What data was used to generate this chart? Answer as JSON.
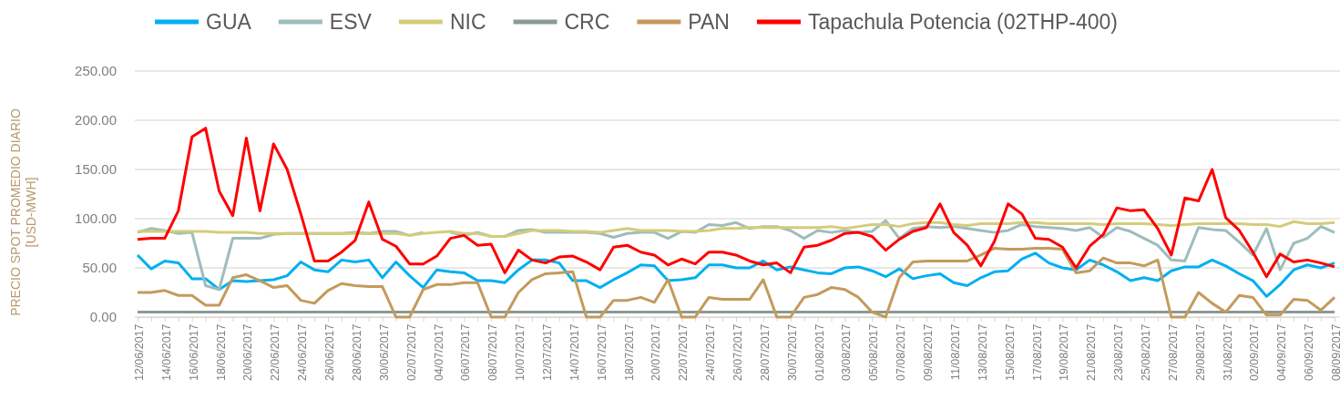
{
  "chart_data": {
    "type": "line",
    "ylabel": "PRECIO SPOT PROMEDIO DIARIO [USD-MWH]",
    "categories": [
      "12/06/2017",
      null,
      "14/06/2017",
      null,
      "16/06/2017",
      null,
      "18/06/2017",
      null,
      "20/06/2017",
      null,
      "22/06/2017",
      null,
      "24/06/2017",
      null,
      "26/06/2017",
      null,
      "28/06/2017",
      null,
      "30/06/2017",
      null,
      "02/07/2017",
      null,
      "04/07/2017",
      null,
      "06/07/2017",
      null,
      "08/07/2017",
      null,
      "10/07/2017",
      null,
      "12/07/2017",
      null,
      "14/07/2017",
      null,
      "16/07/2017",
      null,
      "18/07/2017",
      null,
      "20/07/2017",
      null,
      "22/07/2017",
      null,
      "24/07/2017",
      null,
      "26/07/2017",
      null,
      "28/07/2017",
      null,
      "30/07/2017",
      null,
      "01/08/2017",
      null,
      "03/08/2017",
      null,
      "05/08/2017",
      null,
      "07/08/2017",
      null,
      "09/08/2017",
      null,
      "11/08/2017",
      null,
      "13/08/2017",
      null,
      "15/08/2017",
      null,
      "17/08/2017",
      null,
      "19/08/2017",
      null,
      "21/08/2017",
      null,
      "23/08/2017",
      null,
      "25/08/2017",
      null,
      "27/08/2017",
      null,
      "29/08/2017",
      null,
      "31/08/2017",
      null,
      "02/09/2017",
      null,
      "04/09/2017",
      null,
      "06/09/2017",
      null,
      "08/09/2017"
    ],
    "series": [
      {
        "name": "GUA",
        "color": "#00b0f0",
        "values": [
          63,
          49,
          57,
          55,
          39,
          39,
          28,
          37,
          36,
          37,
          38,
          42,
          56,
          48,
          46,
          58,
          56,
          58,
          40,
          56,
          42,
          30,
          48,
          46,
          45,
          37,
          37,
          35,
          48,
          58,
          58,
          55,
          37,
          37,
          30,
          38,
          45,
          53,
          52,
          37,
          38,
          40,
          53,
          53,
          50,
          50,
          57,
          48,
          51,
          48,
          45,
          44,
          50,
          51,
          47,
          41,
          49,
          39,
          42,
          44,
          35,
          32,
          40,
          46,
          47,
          59,
          65,
          55,
          50,
          48,
          58,
          53,
          46,
          37,
          40,
          37,
          47,
          51,
          51,
          58,
          52,
          44,
          37,
          21,
          33,
          48,
          53,
          50,
          55
        ]
      },
      {
        "name": "ESV",
        "color": "#9fbcbc",
        "values": [
          86,
          90,
          88,
          85,
          86,
          32,
          28,
          80,
          80,
          80,
          84,
          85,
          85,
          85,
          85,
          85,
          86,
          85,
          87,
          87,
          83,
          86,
          null,
          86,
          83,
          86,
          82,
          82,
          88,
          89,
          86,
          86,
          86,
          86,
          85,
          81,
          85,
          86,
          86,
          80,
          87,
          86,
          94,
          93,
          96,
          90,
          92,
          92,
          88,
          80,
          88,
          86,
          88,
          86,
          87,
          98,
          80,
          90,
          92,
          91,
          92,
          90,
          88,
          86,
          88,
          94,
          92,
          91,
          90,
          88,
          91,
          81,
          91,
          87,
          80,
          73,
          58,
          57,
          91,
          89,
          88,
          76,
          63,
          90,
          48,
          75,
          80,
          92,
          86
        ]
      },
      {
        "name": "NIC",
        "color": "#d4cc7a",
        "values": [
          87,
          87,
          87,
          87,
          87,
          87,
          86,
          86,
          86,
          85,
          85,
          85,
          85,
          85,
          85,
          85,
          85,
          85,
          85,
          85,
          83,
          85,
          86,
          87,
          85,
          85,
          82,
          82,
          85,
          88,
          88,
          88,
          87,
          87,
          86,
          88,
          90,
          88,
          88,
          88,
          87,
          87,
          88,
          90,
          90,
          91,
          91,
          91,
          91,
          91,
          91,
          92,
          90,
          92,
          94,
          94,
          92,
          95,
          96,
          96,
          94,
          93,
          95,
          95,
          95,
          96,
          96,
          95,
          95,
          95,
          95,
          94,
          95,
          95,
          95,
          94,
          93,
          94,
          95,
          95,
          95,
          95,
          94,
          94,
          92,
          97,
          95,
          95,
          96
        ]
      },
      {
        "name": "CRC",
        "color": "#8a9a96",
        "values": [
          5,
          5,
          5,
          5,
          5,
          5,
          5,
          5,
          5,
          5,
          5,
          5,
          5,
          5,
          5,
          5,
          5,
          5,
          5,
          5,
          5,
          5,
          5,
          5,
          5,
          5,
          5,
          5,
          5,
          5,
          5,
          5,
          5,
          5,
          5,
          5,
          5,
          5,
          5,
          5,
          5,
          5,
          5,
          5,
          5,
          5,
          5,
          5,
          5,
          5,
          5,
          5,
          5,
          5,
          5,
          5,
          5,
          5,
          5,
          5,
          5,
          5,
          5,
          5,
          5,
          5,
          5,
          5,
          5,
          5,
          5,
          5,
          5,
          5,
          5,
          5,
          5,
          5,
          5,
          5,
          5,
          5,
          5,
          5,
          5,
          5,
          5,
          5,
          5
        ]
      },
      {
        "name": "PAN",
        "color": "#c49a5c",
        "values": [
          25,
          25,
          27,
          22,
          22,
          12,
          12,
          40,
          43,
          37,
          30,
          32,
          17,
          14,
          27,
          34,
          32,
          31,
          31,
          0,
          0,
          28,
          33,
          33,
          35,
          35,
          0,
          0,
          25,
          38,
          44,
          45,
          46,
          0,
          0,
          17,
          17,
          20,
          15,
          38,
          0,
          0,
          20,
          18,
          18,
          18,
          38,
          0,
          0,
          20,
          23,
          30,
          28,
          20,
          5,
          0,
          40,
          56,
          57,
          57,
          57,
          57,
          63,
          70,
          69,
          69,
          70,
          70,
          69,
          45,
          47,
          60,
          55,
          55,
          52,
          58,
          0,
          0,
          25,
          14,
          5,
          22,
          20,
          2,
          2,
          18,
          17,
          7,
          20
        ]
      },
      {
        "name": "Tapachula Potencia (02THP-400)",
        "color": "#ff0000",
        "values": [
          79,
          80,
          80,
          108,
          183,
          192,
          128,
          103,
          182,
          108,
          176,
          150,
          105,
          57,
          57,
          66,
          78,
          117,
          79,
          72,
          54,
          54,
          62,
          80,
          83,
          73,
          74,
          45,
          68,
          58,
          55,
          61,
          62,
          56,
          48,
          71,
          73,
          66,
          63,
          53,
          59,
          54,
          66,
          66,
          63,
          57,
          53,
          55,
          45,
          71,
          73,
          78,
          85,
          86,
          82,
          68,
          79,
          87,
          91,
          115,
          86,
          73,
          52,
          77,
          115,
          105,
          80,
          79,
          71,
          50,
          72,
          84,
          111,
          108,
          109,
          90,
          63,
          121,
          118,
          150,
          101,
          88,
          66,
          41,
          64,
          56,
          58,
          55,
          51
        ]
      }
    ],
    "ylim": [
      0,
      250
    ],
    "yticks": [
      {
        "value": 0,
        "label": "0.00"
      },
      {
        "value": 50,
        "label": "50.00"
      },
      {
        "value": 100,
        "label": "100.00"
      },
      {
        "value": 150,
        "label": "150.00"
      },
      {
        "value": 200,
        "label": "200.00"
      },
      {
        "value": 250,
        "label": "250.00"
      }
    ],
    "grid": "y",
    "legend": "top",
    "marker": "none",
    "line_style": "solid"
  }
}
